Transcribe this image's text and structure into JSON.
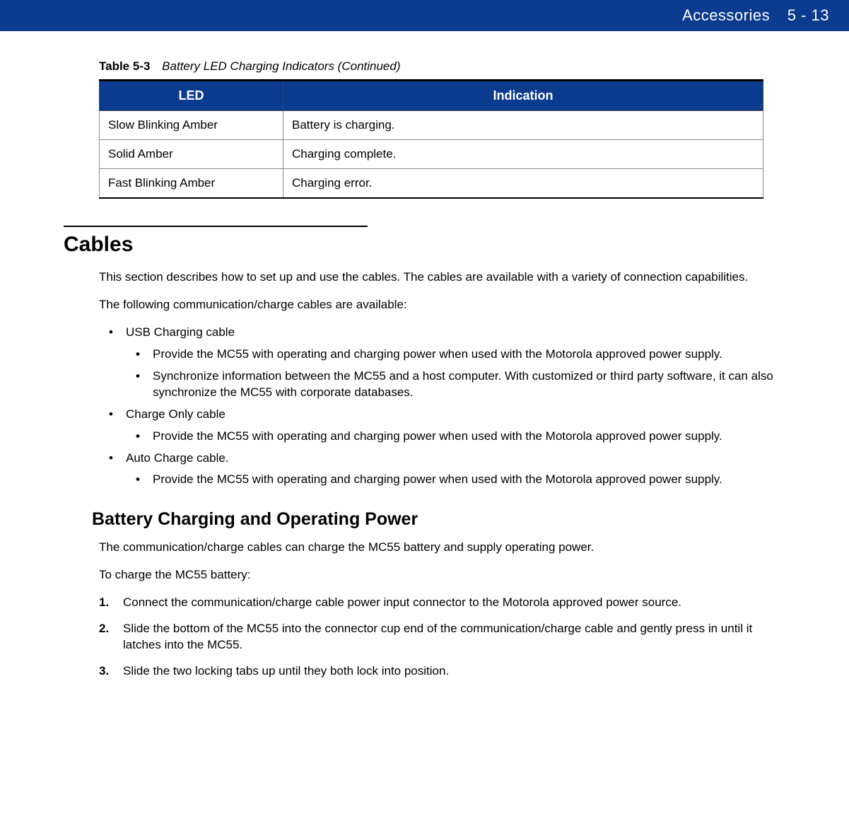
{
  "header": {
    "section": "Accessories",
    "page": "5 - 13",
    "bg_color": "#0a3b8f"
  },
  "table": {
    "caption_label": "Table 5-3",
    "caption_title": "Battery LED Charging Indicators (Continued)",
    "columns": [
      "LED",
      "Indication"
    ],
    "col_widths": [
      "260px",
      "680px"
    ],
    "header_bg": "#0a3b8f",
    "rows": [
      [
        "Slow Blinking Amber",
        "Battery is charging."
      ],
      [
        "Solid Amber",
        "Charging complete."
      ],
      [
        "Fast Blinking Amber",
        "Charging error."
      ]
    ]
  },
  "section": {
    "heading": "Cables",
    "para1": "This section describes how to set up and use the cables. The cables are available with a variety of connection capabilities.",
    "para2": "The following communication/charge cables are available:",
    "bullets": [
      {
        "text": "USB Charging cable",
        "sub": [
          "Provide the MC55 with operating and charging power when used with the Motorola approved power supply.",
          "Synchronize information between the MC55 and a host computer. With customized or third party software, it can also synchronize the MC55 with corporate databases."
        ]
      },
      {
        "text": "Charge Only cable",
        "sub": [
          "Provide the MC55 with operating and charging power when used with the Motorola approved power supply."
        ]
      },
      {
        "text": "Auto Charge cable.",
        "sub": [
          "Provide the MC55 with operating and charging power when used with the Motorola approved power supply."
        ]
      }
    ]
  },
  "subsection": {
    "heading": "Battery Charging and Operating Power",
    "para1": "The communication/charge cables can charge the MC55 battery and supply operating power.",
    "para2": "To charge the MC55 battery:",
    "steps": [
      "Connect the communication/charge cable power input connector to the Motorola approved power source.",
      "Slide the bottom of the MC55 into the connector cup end of the communication/charge cable and gently press in until it latches into the MC55.",
      "Slide the two locking tabs up until they both lock into position."
    ]
  }
}
